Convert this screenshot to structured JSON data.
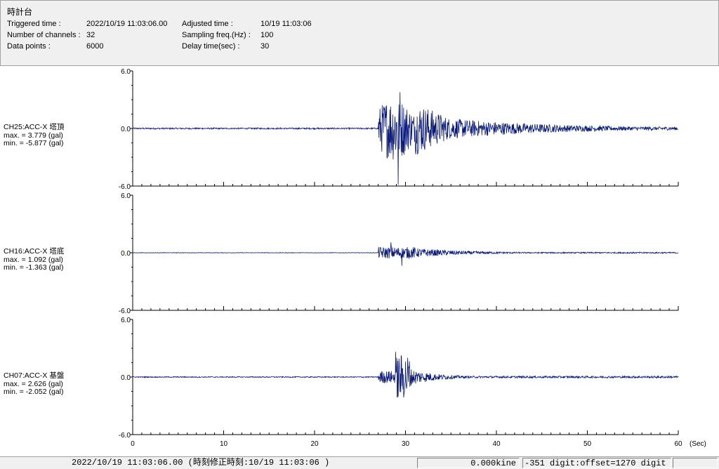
{
  "header": {
    "title": "時計台",
    "triggered_label": "Triggered time :",
    "triggered_value": "2022/10/19 11:03:06.00",
    "adjusted_label": "Adjusted time :",
    "adjusted_value": "10/19 11:03:06",
    "channels_label": "Number of channels :",
    "channels_value": "32",
    "sampling_label": "Sampling freq.(Hz) :",
    "sampling_value": "100",
    "datapoints_label": "Data points :",
    "datapoints_value": "6000",
    "delay_label": "Delay time(sec) :",
    "delay_value": "30"
  },
  "colors": {
    "trace": "#0a1a78",
    "axis": "#000000",
    "panel_bg": "#f0f0f0"
  },
  "chart_data": {
    "type": "line",
    "xlabel": "(Sec)",
    "xlim": [
      0,
      60
    ],
    "x_ticks": [
      "0",
      "10",
      "20",
      "30",
      "40",
      "50",
      "60"
    ],
    "channels": [
      {
        "name": "CH25:ACC-X 塔頂",
        "max_text": "max. = 3.779 (gal)",
        "min_text": "min. = -5.877 (gal)",
        "max": 3.779,
        "min": -5.877,
        "ylim": [
          -6.0,
          6.0
        ],
        "y_ticks": [
          "6.0",
          "0.0",
          "-6.0"
        ]
      },
      {
        "name": "CH16:ACC-X 塔底",
        "max_text": "max. = 1.092 (gal)",
        "min_text": "min. = -1.363 (gal)",
        "max": 1.092,
        "min": -1.363,
        "ylim": [
          -6.0,
          6.0
        ],
        "y_ticks": [
          "6.0",
          "0.0",
          "-6.0"
        ]
      },
      {
        "name": "CH07:ACC-X 基盤",
        "max_text": "max. = 2.626 (gal)",
        "min_text": "min. = -2.052 (gal)",
        "max": 2.626,
        "min": -2.052,
        "ylim": [
          -6.0,
          6.0
        ],
        "y_ticks": [
          "6.0",
          "0.0",
          "-6.0"
        ]
      }
    ]
  },
  "status": {
    "time_text": "2022/10/19 11:03:06.00  (時刻修正時刻:10/19 11:03:06  )",
    "kine_text": "0.000kine",
    "digit_text": "-351 digit:offset=1270 digit"
  }
}
